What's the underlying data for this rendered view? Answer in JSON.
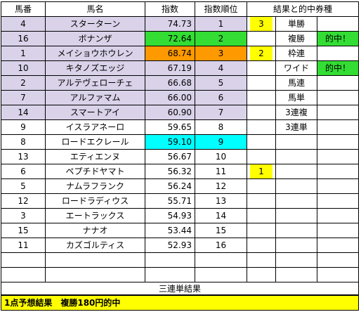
{
  "headers": [
    "馬番",
    "馬名",
    "指数",
    "指数順位",
    "結果と的中券種"
  ],
  "rows": [
    {
      "num": "4",
      "name": "スターターン",
      "score": "74.73",
      "rank": "1",
      "result": "3",
      "bet": "単勝",
      "hit": ""
    },
    {
      "num": "16",
      "name": "ボナンザ",
      "score": "72.64",
      "rank": "2",
      "result": "",
      "bet": "複勝",
      "hit": "的中！"
    },
    {
      "num": "1",
      "name": "メイショウホウレン",
      "score": "68.74",
      "rank": "3",
      "result": "2",
      "bet": "枠連",
      "hit": ""
    },
    {
      "num": "10",
      "name": "キタノズエッジ",
      "score": "67.19",
      "rank": "4",
      "result": "",
      "bet": "ワイド",
      "hit": "的中！"
    },
    {
      "num": "2",
      "name": "アルテヴェローチェ",
      "score": "66.68",
      "rank": "5",
      "result": "",
      "bet": "馬連",
      "hit": ""
    },
    {
      "num": "7",
      "name": "アルファマム",
      "score": "66.00",
      "rank": "6",
      "result": "",
      "bet": "馬単",
      "hit": ""
    },
    {
      "num": "14",
      "name": "スマートアイ",
      "score": "60.90",
      "rank": "7",
      "result": "",
      "bet": "3連複",
      "hit": ""
    },
    {
      "num": "9",
      "name": "イスラアネーロ",
      "score": "59.65",
      "rank": "8",
      "result": "",
      "bet": "3連単",
      "hit": ""
    },
    {
      "num": "8",
      "name": "ロードエクレール",
      "score": "59.10",
      "rank": "9",
      "result": "",
      "bet": "",
      "hit": ""
    },
    {
      "num": "13",
      "name": "エティエンヌ",
      "score": "56.67",
      "rank": "10",
      "result": "",
      "bet": "",
      "hit": ""
    },
    {
      "num": "6",
      "name": "ペプチドヤマト",
      "score": "56.32",
      "rank": "11",
      "result": "1",
      "bet": "",
      "hit": ""
    },
    {
      "num": "5",
      "name": "ナムラフランク",
      "score": "56.24",
      "rank": "12",
      "result": "",
      "bet": "",
      "hit": ""
    },
    {
      "num": "12",
      "name": "ロードラディウス",
      "score": "55.71",
      "rank": "13",
      "result": "",
      "bet": "",
      "hit": ""
    },
    {
      "num": "3",
      "name": "エートラックス",
      "score": "54.93",
      "rank": "14",
      "result": "",
      "bet": "",
      "hit": ""
    },
    {
      "num": "15",
      "name": "ナナオ",
      "score": "53.44",
      "rank": "15",
      "result": "",
      "bet": "",
      "hit": ""
    },
    {
      "num": "11",
      "name": "カズゴルティス",
      "score": "52.93",
      "rank": "16",
      "result": "",
      "bet": "",
      "hit": ""
    }
  ],
  "footer": {
    "sanrentan_title": "三連単結果",
    "summary": "1点予想結果　複勝180円的中"
  },
  "colors": {
    "lavender": "#d9d2e9",
    "green": "#33dd33",
    "orange": "#ff9900",
    "cyan": "#00ffff",
    "yellow": "#ffff00"
  }
}
